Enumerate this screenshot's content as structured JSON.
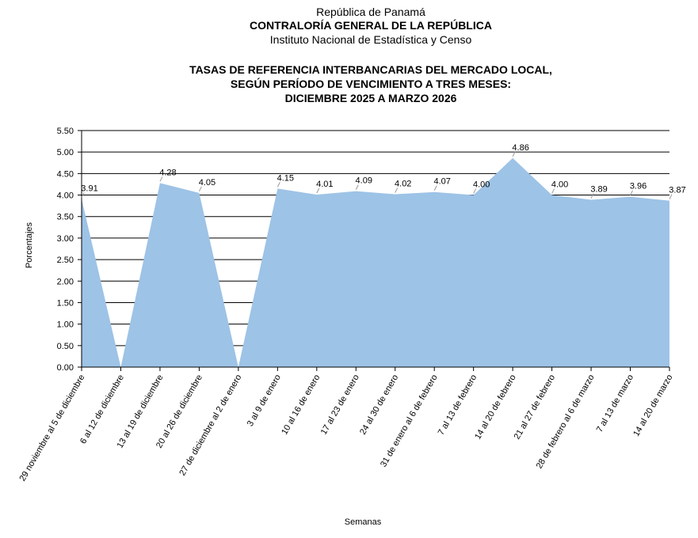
{
  "header": {
    "country": "República de Panamá",
    "institution": "CONTRALORÍA GENERAL DE LA REPÚBLICA",
    "institute": "Instituto  Nacional de Estadística y Censo"
  },
  "chart_data": {
    "type": "area",
    "title": [
      "TASAS DE REFERENCIA INTERBANCARIAS DEL MERCADO LOCAL,",
      "SEGÚN PERÍODO DE VENCIMIENTO A TRES MESES:",
      "DICIEMBRE 2025 A MARZO 2026"
    ],
    "x_label": "Semanas",
    "y_label": "Porcentajes",
    "categories": [
      "29 noviembre al 5 de diciembre",
      "6 al 12 de diciembre",
      "13 al 19 de diciembre",
      "20 al 26 de diciembre",
      "27 de diciembre al 2 de enero",
      "3 al 9 de enero",
      "10 al 16 de enero",
      "17 al 23 de enero",
      "24 al 30 de enero",
      "31 de enero al 6 de febrero",
      "7 al 13 de febrero",
      "14 al 20 de febrero",
      "21 al 27 de febrero",
      "28 de febrero al 6 de marzo",
      "7 al 13 de marzo",
      "14 al 20 de marzo"
    ],
    "values": [
      3.91,
      0,
      4.28,
      4.05,
      0,
      4.15,
      4.01,
      4.09,
      4.02,
      4.07,
      4.0,
      4.86,
      4.0,
      3.89,
      3.96,
      3.87
    ],
    "value_labels": [
      "3.91",
      null,
      "4.28",
      "4.05",
      null,
      "4.15",
      "4.01",
      "4.09",
      "4.02",
      "4.07",
      "4.00",
      "4.86",
      "4.00",
      "3.89",
      "3.96",
      "3.87"
    ],
    "color": "#9dc3e6",
    "ylim": [
      0,
      5.5
    ],
    "yticks": [
      {
        "value": 0,
        "label": "0.00"
      },
      {
        "value": 0.5,
        "label": "0.50"
      },
      {
        "value": 1,
        "label": "1.00"
      },
      {
        "value": 1.5,
        "label": "1.50"
      },
      {
        "value": 2,
        "label": "2.00"
      },
      {
        "value": 2.5,
        "label": "2.50"
      },
      {
        "value": 3,
        "label": "3.00"
      },
      {
        "value": 3.5,
        "label": "3.50"
      },
      {
        "value": 4,
        "label": "4.00"
      },
      {
        "value": 4.5,
        "label": "4.50"
      },
      {
        "value": 5,
        "label": "5.00"
      },
      {
        "value": 5.5,
        "label": "5.50"
      }
    ],
    "grid": true
  }
}
